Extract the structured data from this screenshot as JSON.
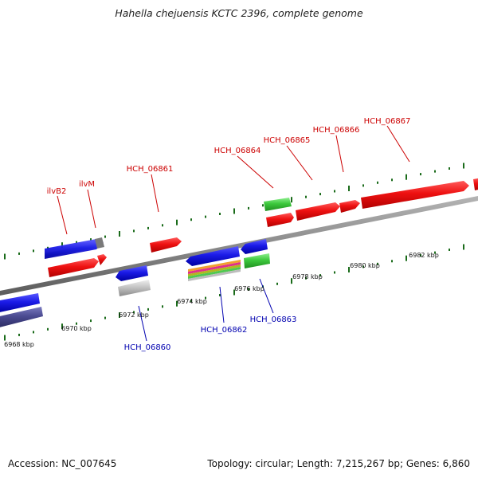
{
  "title": "Hahella chejuensis KCTC 2396, complete genome",
  "footer": {
    "accession": "Accession: NC_007645",
    "summary": "Topology: circular; Length: 7,215,267 bp; Genes: 6,860"
  },
  "colors": {
    "forward_gene_label": "#cc0000",
    "reverse_gene_label": "#0000b0",
    "backbone": "#8c8c8c",
    "tick": "#1a6b1a",
    "red_feature": "#ee1111",
    "blue_feature": "#1a1ae6",
    "green_feature": "#3cc83c",
    "grey_feature": "#c4c4c4",
    "navy_feature": "#4a4a90",
    "steel_feature": "#5b8fc9"
  },
  "scale_labels": [
    "6968 kbp",
    "6970 kbp",
    "6972 kbp",
    "6974 kbp",
    "6976 kbp",
    "6978 kbp",
    "6980 kbp",
    "6982 kbp"
  ],
  "gene_labels_forward": [
    "ilvB2",
    "ilvM",
    "HCH_06861",
    "HCH_06864",
    "HCH_06865",
    "HCH_06866",
    "HCH_06867"
  ],
  "gene_labels_reverse": [
    "HCH_06860",
    "HCH_06862",
    "HCH_06863"
  ]
}
